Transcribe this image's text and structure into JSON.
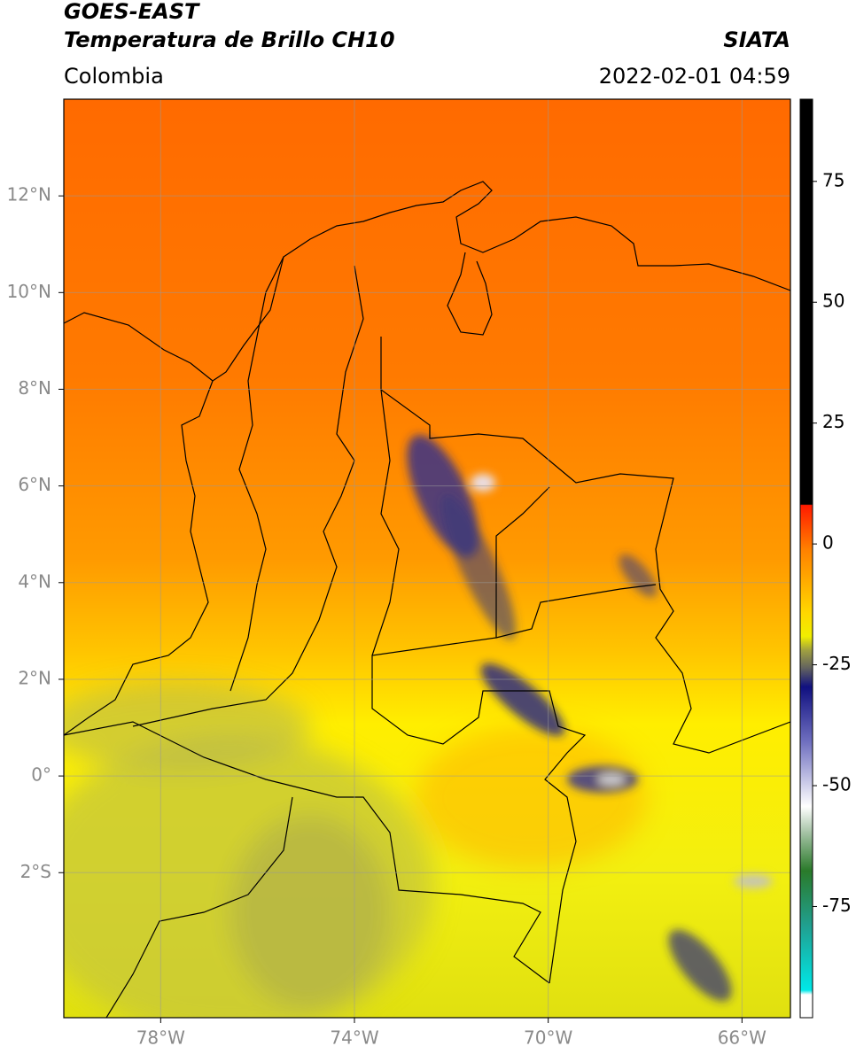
{
  "header": {
    "title": "GOES-EAST",
    "subtitle": "Temperatura de Brillo CH10",
    "source": "SIATA",
    "region": "Colombia",
    "timestamp": "2022-02-01 04:59"
  },
  "map": {
    "xlim": [
      -80,
      -65
    ],
    "ylim": [
      -5,
      14
    ],
    "grid": true,
    "xticks": [
      {
        "value": -78,
        "label": "78°W"
      },
      {
        "value": -74,
        "label": "74°W"
      },
      {
        "value": -70,
        "label": "70°W"
      },
      {
        "value": -66,
        "label": "66°W"
      }
    ],
    "yticks": [
      {
        "value": 12,
        "label": "12°N"
      },
      {
        "value": 10,
        "label": "10°N"
      },
      {
        "value": 8,
        "label": "8°N"
      },
      {
        "value": 6,
        "label": "6°N"
      },
      {
        "value": 4,
        "label": "4°N"
      },
      {
        "value": 2,
        "label": "2°N"
      },
      {
        "value": 0,
        "label": "0°"
      },
      {
        "value": -2,
        "label": "2°S"
      }
    ]
  },
  "colorbar": {
    "lim": [
      -98,
      92
    ],
    "ticks": [
      75,
      50,
      25,
      0,
      -25,
      -50,
      -75
    ]
  }
}
